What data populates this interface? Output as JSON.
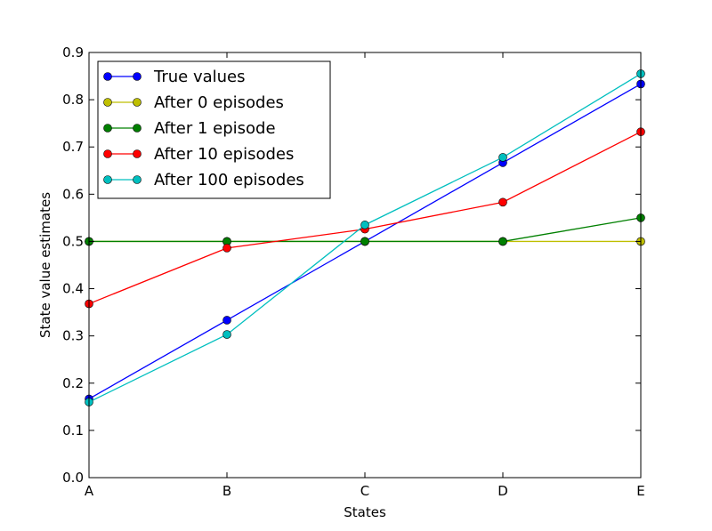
{
  "chart_data": {
    "type": "line",
    "title": "",
    "xlabel": "States",
    "ylabel": "State value estimates",
    "categories": [
      "A",
      "B",
      "C",
      "D",
      "E"
    ],
    "ylim": [
      0.0,
      0.9
    ],
    "yticks": [
      "0.0",
      "0.1",
      "0.2",
      "0.3",
      "0.4",
      "0.5",
      "0.6",
      "0.7",
      "0.8",
      "0.9"
    ],
    "grid": false,
    "legend_position": "top-left",
    "series": [
      {
        "name": "True values",
        "color": "#0000ff",
        "values": [
          0.1667,
          0.3333,
          0.5,
          0.6667,
          0.8333
        ]
      },
      {
        "name": "After 0 episodes",
        "color": "#bfbf00",
        "values": [
          0.5,
          0.5,
          0.5,
          0.5,
          0.5
        ]
      },
      {
        "name": "After 1 episode",
        "color": "#008000",
        "values": [
          0.5,
          0.5,
          0.5,
          0.5,
          0.55
        ]
      },
      {
        "name": "After 10 episodes",
        "color": "#ff0000",
        "values": [
          0.368,
          0.486,
          0.526,
          0.583,
          0.732
        ]
      },
      {
        "name": "After 100 episodes",
        "color": "#00bfbf",
        "values": [
          0.16,
          0.303,
          0.535,
          0.678,
          0.855
        ]
      }
    ]
  }
}
